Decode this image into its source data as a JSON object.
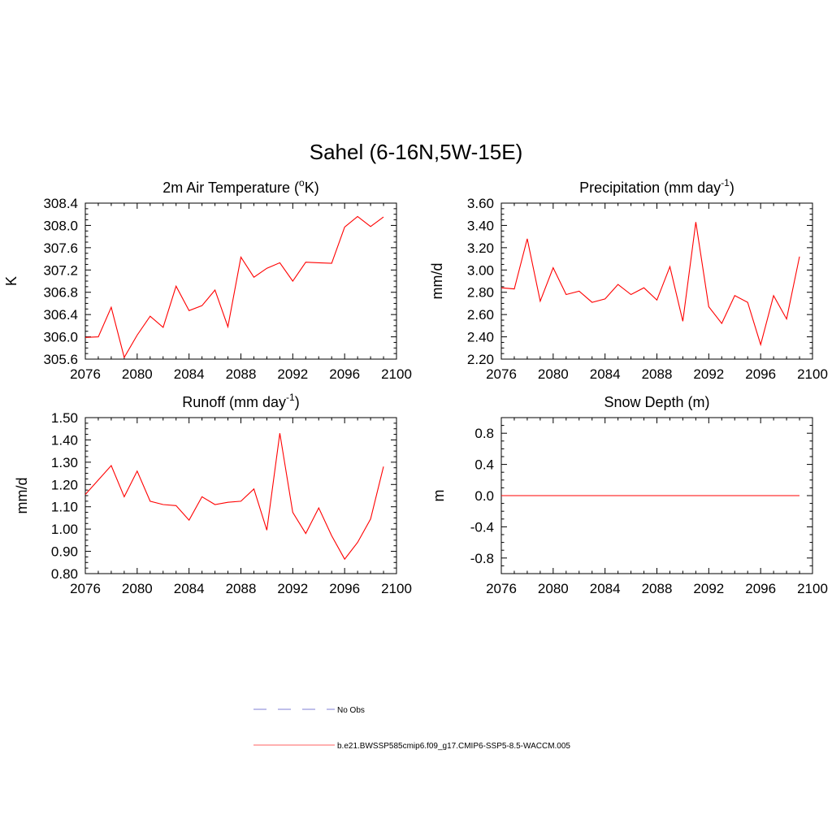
{
  "title": "Sahel (6-16N,5W-15E)",
  "legend": [
    {
      "label": "No Obs",
      "color": "#9999dd",
      "dash": true
    },
    {
      "label": "b.e21.BWSSP585cmip6.f09_g17.CMIP6-SSP5-8.5-WACCM.005",
      "color": "#ff8080",
      "dash": false
    }
  ],
  "chart_data": [
    {
      "type": "line",
      "title": "2m Air Temperature (°K)",
      "title_parts": [
        "2m Air Temperature (",
        "o",
        "K)"
      ],
      "xlabel": "",
      "ylabel": "K",
      "xlim": [
        2076,
        2100
      ],
      "ylim": [
        305.6,
        308.4
      ],
      "xticks": [
        "2076",
        "2080",
        "2084",
        "2088",
        "2092",
        "2096",
        "2100"
      ],
      "yticks": [
        "305.6",
        "306.0",
        "306.4",
        "306.8",
        "307.2",
        "307.6",
        "308.0",
        "308.4"
      ],
      "series": [
        {
          "color": "#ff0000",
          "x": [
            2076,
            2077,
            2078,
            2079,
            2080,
            2081,
            2082,
            2083,
            2084,
            2085,
            2086,
            2087,
            2088,
            2089,
            2090,
            2091,
            2092,
            2093,
            2094,
            2095,
            2096,
            2097,
            2098,
            2099
          ],
          "y": [
            305.99,
            306.0,
            306.53,
            305.63,
            306.03,
            306.37,
            306.17,
            306.91,
            306.47,
            306.56,
            306.84,
            306.18,
            307.43,
            307.07,
            307.23,
            307.33,
            307.0,
            307.34,
            307.33,
            307.32,
            307.97,
            308.16,
            307.98,
            308.15
          ]
        }
      ]
    },
    {
      "type": "line",
      "title": "Precipitation (mm day-1)",
      "title_parts": [
        "Precipitation (mm day",
        "-1",
        ")"
      ],
      "xlabel": "",
      "ylabel": "mm/d",
      "xlim": [
        2076,
        2100
      ],
      "ylim": [
        2.2,
        3.6
      ],
      "xticks": [
        "2076",
        "2080",
        "2084",
        "2088",
        "2092",
        "2096",
        "2100"
      ],
      "yticks": [
        "2.20",
        "2.40",
        "2.60",
        "2.80",
        "3.00",
        "3.20",
        "3.40",
        "3.60"
      ],
      "series": [
        {
          "color": "#ff0000",
          "x": [
            2076,
            2077,
            2078,
            2079,
            2080,
            2081,
            2082,
            2083,
            2084,
            2085,
            2086,
            2087,
            2088,
            2089,
            2090,
            2091,
            2092,
            2093,
            2094,
            2095,
            2096,
            2097,
            2098,
            2099
          ],
          "y": [
            2.84,
            2.83,
            3.28,
            2.72,
            3.02,
            2.78,
            2.81,
            2.71,
            2.74,
            2.87,
            2.78,
            2.84,
            2.73,
            3.03,
            2.54,
            3.43,
            2.67,
            2.52,
            2.77,
            2.71,
            2.33,
            2.77,
            2.56,
            3.12
          ]
        }
      ]
    },
    {
      "type": "line",
      "title": "Runoff (mm day-1)",
      "title_parts": [
        "Runoff (mm day",
        "-1",
        ")"
      ],
      "xlabel": "",
      "ylabel": "mm/d",
      "xlim": [
        2076,
        2100
      ],
      "ylim": [
        0.8,
        1.5
      ],
      "xticks": [
        "2076",
        "2080",
        "2084",
        "2088",
        "2092",
        "2096",
        "2100"
      ],
      "yticks": [
        "0.80",
        "0.90",
        "1.00",
        "1.10",
        "1.20",
        "1.30",
        "1.40",
        "1.50"
      ],
      "series": [
        {
          "color": "#ff0000",
          "x": [
            2076,
            2077,
            2078,
            2079,
            2080,
            2081,
            2082,
            2083,
            2084,
            2085,
            2086,
            2087,
            2088,
            2089,
            2090,
            2091,
            2092,
            2093,
            2094,
            2095,
            2096,
            2097,
            2098,
            2099
          ],
          "y": [
            1.155,
            1.22,
            1.285,
            1.145,
            1.26,
            1.125,
            1.11,
            1.105,
            1.04,
            1.145,
            1.11,
            1.12,
            1.125,
            1.18,
            0.995,
            1.43,
            1.075,
            0.98,
            1.095,
            0.97,
            0.865,
            0.94,
            1.045,
            1.28
          ]
        }
      ]
    },
    {
      "type": "line",
      "title": "Snow Depth (m)",
      "title_parts": [
        "Snow Depth (m)",
        "",
        ""
      ],
      "xlabel": "",
      "ylabel": "m",
      "xlim": [
        2076,
        2100
      ],
      "ylim": [
        -1.0,
        1.0
      ],
      "xticks": [
        "2076",
        "2080",
        "2084",
        "2088",
        "2092",
        "2096",
        "2100"
      ],
      "yticks": [
        "-0.8",
        "-0.4",
        "0.0",
        "0.4",
        "0.8"
      ],
      "series": [
        {
          "color": "#ff0000",
          "x": [
            2076,
            2077,
            2078,
            2079,
            2080,
            2081,
            2082,
            2083,
            2084,
            2085,
            2086,
            2087,
            2088,
            2089,
            2090,
            2091,
            2092,
            2093,
            2094,
            2095,
            2096,
            2097,
            2098,
            2099
          ],
          "y": [
            0,
            0,
            0,
            0,
            0,
            0,
            0,
            0,
            0,
            0,
            0,
            0,
            0,
            0,
            0,
            0,
            0,
            0,
            0,
            0,
            0,
            0,
            0,
            0
          ]
        }
      ]
    }
  ]
}
